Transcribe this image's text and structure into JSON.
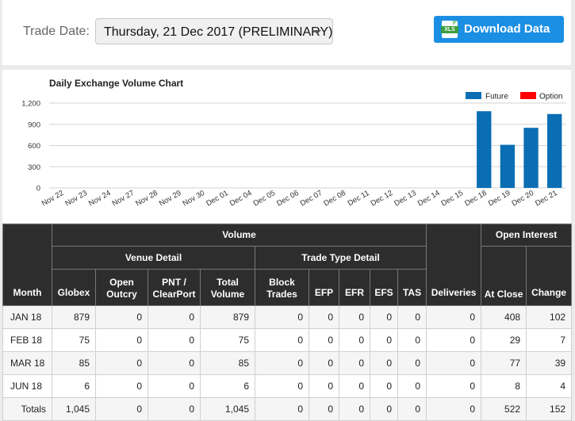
{
  "header": {
    "trade_date_label": "Trade Date:",
    "trade_date_value": "Thursday, 21 Dec 2017 (PRELIMINARY)",
    "download_label": "Download Data",
    "download_icon_text": "XLS"
  },
  "chart_data": {
    "type": "bar",
    "title": "Daily Exchange Volume Chart",
    "categories": [
      "Nov 22",
      "Nov 23",
      "Nov 24",
      "Nov 27",
      "Nov 28",
      "Nov 29",
      "Nov 30",
      "Dec 01",
      "Dec 04",
      "Dec 05",
      "Dec 06",
      "Dec 07",
      "Dec 08",
      "Dec 11",
      "Dec 12",
      "Dec 13",
      "Dec 14",
      "Dec 15",
      "Dec 18",
      "Dec 19",
      "Dec 20",
      "Dec 21"
    ],
    "series": [
      {
        "name": "Future",
        "color": "#0a6eb4",
        "values": [
          0,
          0,
          0,
          0,
          0,
          0,
          0,
          0,
          0,
          0,
          0,
          0,
          0,
          0,
          0,
          0,
          0,
          0,
          1085,
          610,
          850,
          1045
        ]
      },
      {
        "name": "Option",
        "color": "#ff0000",
        "values": [
          0,
          0,
          0,
          0,
          0,
          0,
          0,
          0,
          0,
          0,
          0,
          0,
          0,
          0,
          0,
          0,
          0,
          0,
          0,
          0,
          0,
          0
        ]
      }
    ],
    "yticks": [
      "0",
      "300",
      "600",
      "900",
      "1,200"
    ],
    "ylim": [
      0,
      1200
    ],
    "grid": true,
    "legend_position": "top-right"
  },
  "table": {
    "group_headers": {
      "month": "Month",
      "volume": "Volume",
      "venue_detail": "Venue Detail",
      "trade_type_detail": "Trade Type Detail",
      "deliveries": "Deliveries",
      "open_interest": "Open Interest"
    },
    "columns": {
      "globex": "Globex",
      "open_outcry": "Open Outcry",
      "pnt_clearport": "PNT / ClearPort",
      "total_volume": "Total Volume",
      "block_trades": "Block Trades",
      "efp": "EFP",
      "efr": "EFR",
      "efs": "EFS",
      "tas": "TAS",
      "at_close": "At Close",
      "change": "Change"
    },
    "rows": [
      {
        "month": "JAN 18",
        "globex": "879",
        "open_outcry": "0",
        "pnt": "0",
        "total": "879",
        "block": "0",
        "efp": "0",
        "efr": "0",
        "efs": "0",
        "tas": "0",
        "deliveries": "0",
        "at_close": "408",
        "change": "102"
      },
      {
        "month": "FEB 18",
        "globex": "75",
        "open_outcry": "0",
        "pnt": "0",
        "total": "75",
        "block": "0",
        "efp": "0",
        "efr": "0",
        "efs": "0",
        "tas": "0",
        "deliveries": "0",
        "at_close": "29",
        "change": "7"
      },
      {
        "month": "MAR 18",
        "globex": "85",
        "open_outcry": "0",
        "pnt": "0",
        "total": "85",
        "block": "0",
        "efp": "0",
        "efr": "0",
        "efs": "0",
        "tas": "0",
        "deliveries": "0",
        "at_close": "77",
        "change": "39"
      },
      {
        "month": "JUN 18",
        "globex": "6",
        "open_outcry": "0",
        "pnt": "0",
        "total": "6",
        "block": "0",
        "efp": "0",
        "efr": "0",
        "efs": "0",
        "tas": "0",
        "deliveries": "0",
        "at_close": "8",
        "change": "4"
      }
    ],
    "totals": {
      "month": "Totals",
      "globex": "1,045",
      "open_outcry": "0",
      "pnt": "0",
      "total": "1,045",
      "block": "0",
      "efp": "0",
      "efr": "0",
      "efs": "0",
      "tas": "0",
      "deliveries": "0",
      "at_close": "522",
      "change": "152"
    }
  }
}
